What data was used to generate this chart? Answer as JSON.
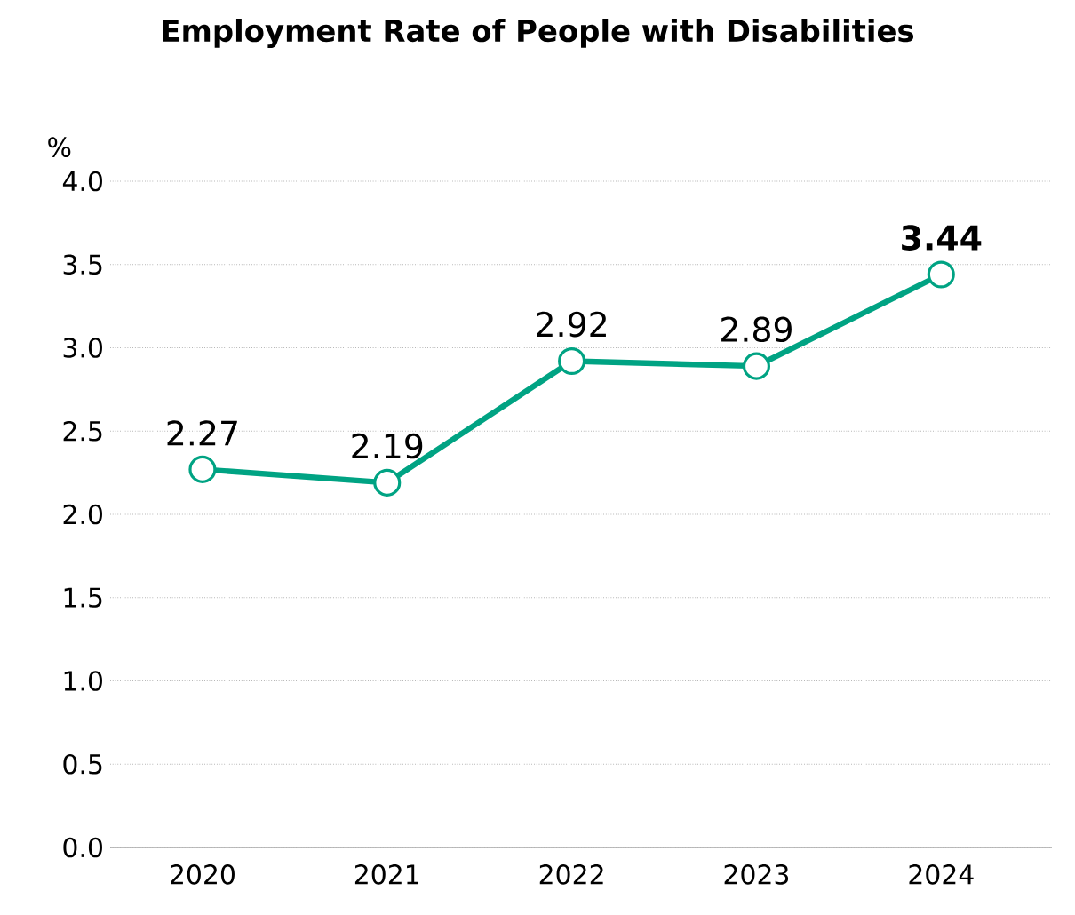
{
  "chart_data": {
    "type": "line",
    "title": "Employment Rate of People with Disabilities",
    "ylabel": "%",
    "categories": [
      "2020",
      "2021",
      "2022",
      "2023",
      "2024"
    ],
    "series": [
      {
        "color": "#00a383",
        "values": [
          2.27,
          2.19,
          2.92,
          2.89,
          3.44
        ],
        "value_labels": [
          "2.27",
          "2.19",
          "2.92",
          "2.89",
          "**3.44**"
        ]
      }
    ],
    "ylim": [
      0,
      4
    ],
    "yticks": [
      {
        "value": 0,
        "label": "0.0"
      },
      {
        "value": 0.5,
        "label": "0.5"
      },
      {
        "value": 1,
        "label": "1.0"
      },
      {
        "value": 1.5,
        "label": "1.5"
      },
      {
        "value": 2,
        "label": "2.0"
      },
      {
        "value": 2.5,
        "label": "2.5"
      },
      {
        "value": 3,
        "label": "3.0"
      },
      {
        "value": 3.5,
        "label": "3.5"
      },
      {
        "value": 4,
        "label": "4.0"
      }
    ],
    "grid": "y",
    "marker": "circle",
    "line_style": "solid"
  }
}
